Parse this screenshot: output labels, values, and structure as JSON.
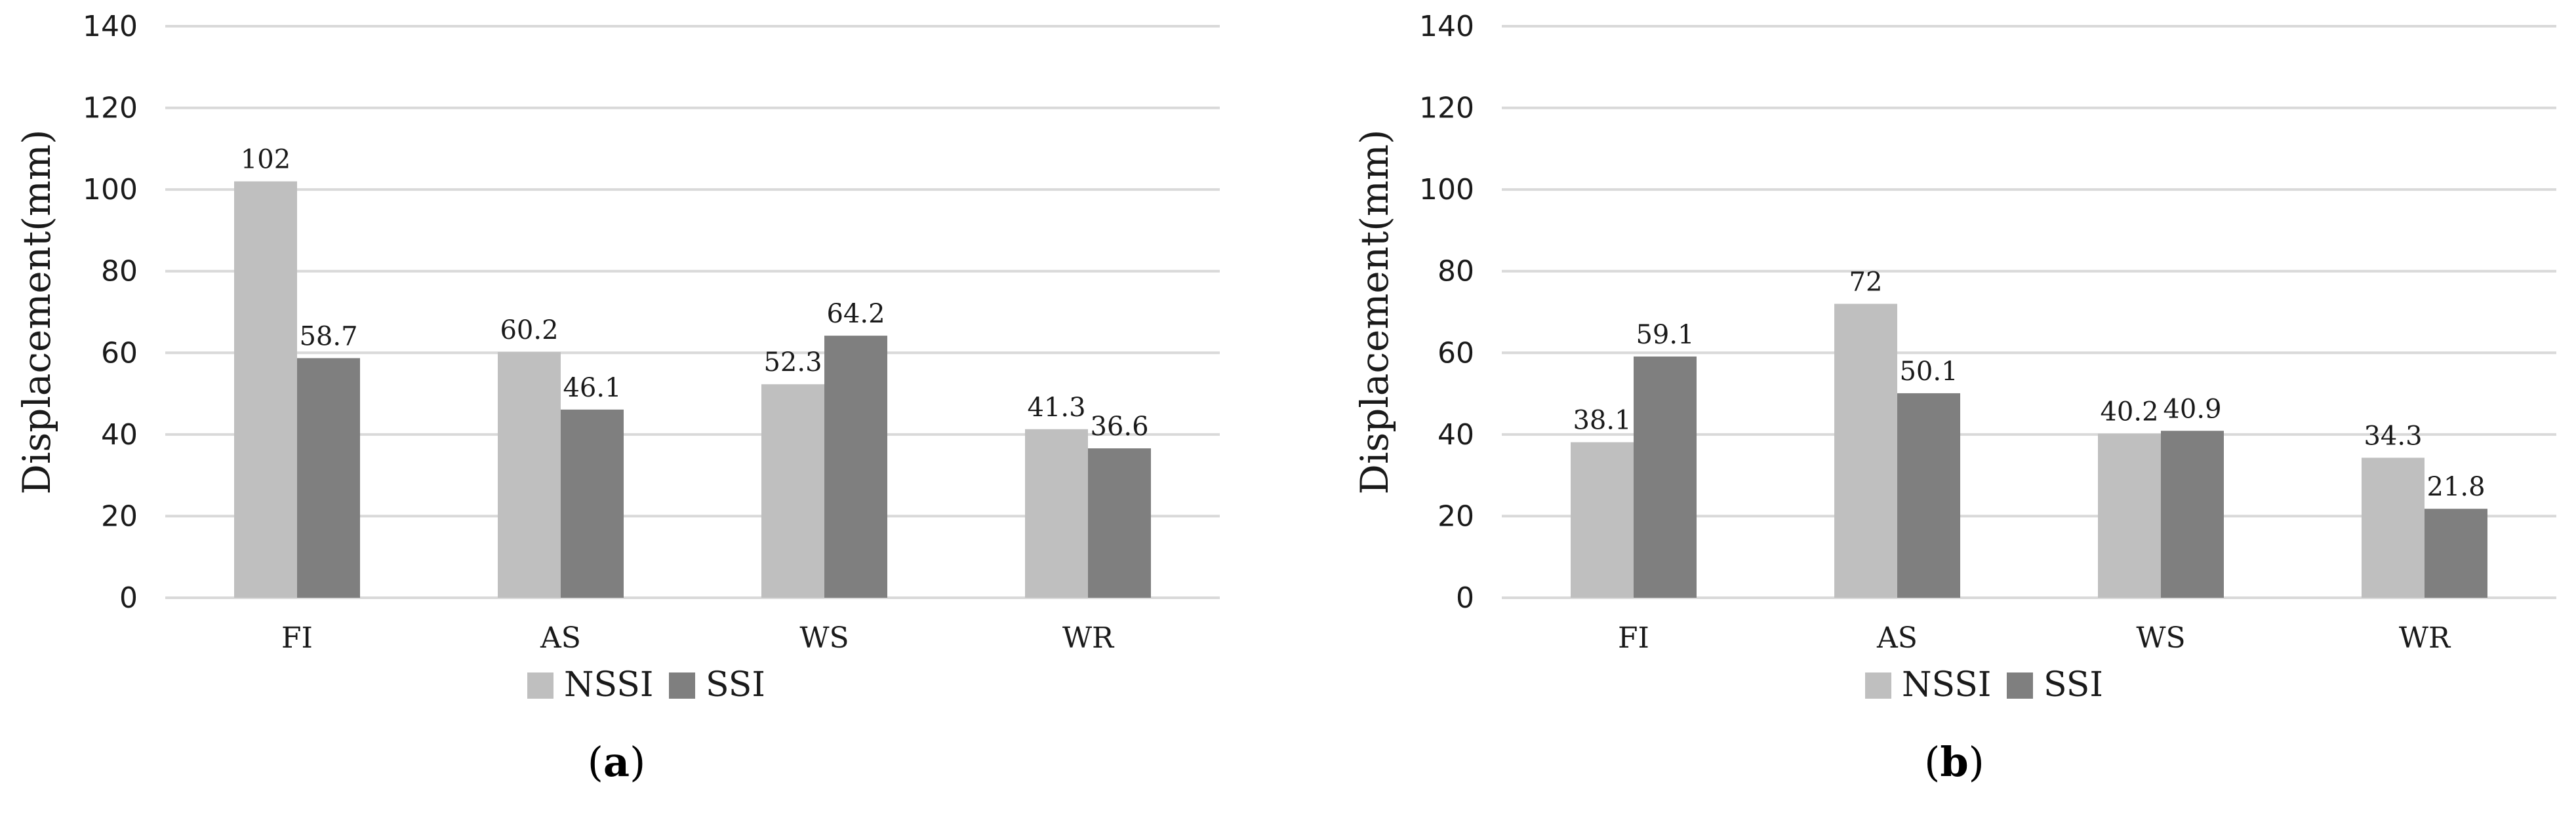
{
  "figure": {
    "legend": [
      {
        "name": "NSSI",
        "color": "#bfbfbf"
      },
      {
        "name": "SSI",
        "color": "#7f7f7f"
      }
    ]
  },
  "chart_data": [
    {
      "type": "bar",
      "panel": "a",
      "ylabel": "Displacement(mm)",
      "xlabel": "",
      "ylim": [
        0,
        140
      ],
      "yticks": [
        0,
        20,
        40,
        60,
        80,
        100,
        120,
        140
      ],
      "categories": [
        "FI",
        "AS",
        "WS",
        "WR"
      ],
      "series": [
        {
          "name": "NSSI",
          "values": [
            102,
            60.2,
            52.3,
            41.3
          ],
          "labels": [
            "102",
            "60.2",
            "52.3",
            "41.3"
          ]
        },
        {
          "name": "SSI",
          "values": [
            58.7,
            46.1,
            64.2,
            36.6
          ],
          "labels": [
            "58.7",
            "46.1",
            "64.2",
            "36.6"
          ]
        }
      ],
      "legend_position": "bottom",
      "caption": {
        "open": "(",
        "letter": "a",
        "close": ")"
      }
    },
    {
      "type": "bar",
      "panel": "b",
      "ylabel": "Displacement(mm)",
      "xlabel": "",
      "ylim": [
        0,
        140
      ],
      "yticks": [
        0,
        20,
        40,
        60,
        80,
        100,
        120,
        140
      ],
      "categories": [
        "FI",
        "AS",
        "WS",
        "WR"
      ],
      "series": [
        {
          "name": "NSSI",
          "values": [
            38.1,
            72,
            40.2,
            34.3
          ],
          "labels": [
            "38.1",
            "72",
            "40.2",
            "34.3"
          ]
        },
        {
          "name": "SSI",
          "values": [
            59.1,
            50.1,
            40.9,
            21.8
          ],
          "labels": [
            "59.1",
            "50.1",
            "40.9",
            "21.8"
          ]
        }
      ],
      "legend_position": "bottom",
      "caption": {
        "open": "(",
        "letter": "b",
        "close": ")"
      }
    }
  ]
}
